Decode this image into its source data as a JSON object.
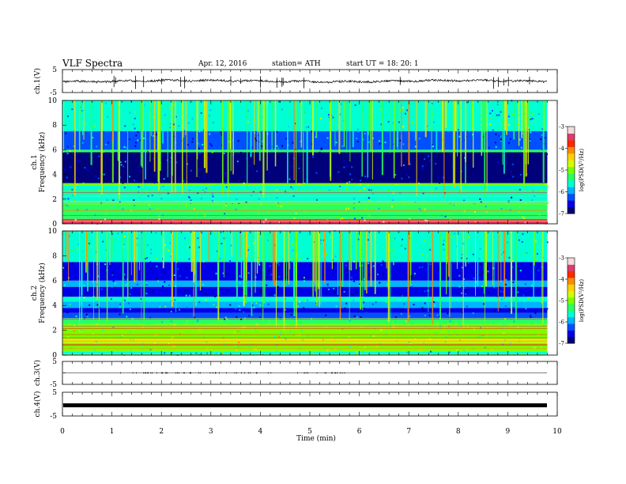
{
  "header": {
    "title": "VLF  Spectra",
    "date": "Apr. 12, 2016",
    "station": "station= ATH",
    "start": "start  UT  =    18: 20: 1"
  },
  "chart_data": [
    {
      "type": "line",
      "panel": "ch1-waveform",
      "ylabel": "ch.1(V)",
      "ylim": [
        -5,
        5
      ],
      "yticks": [
        "5",
        "-5"
      ],
      "xlim": [
        0,
        10
      ],
      "baseline": 0,
      "color": "#000000"
    },
    {
      "type": "heatmap",
      "panel": "ch1-spectrogram",
      "ylabel": "ch.1 Frequency (kHz)",
      "ylabel_lines": [
        "ch.1",
        "Frequency  (kHz)"
      ],
      "ylim": [
        0,
        10
      ],
      "yticks": [
        "0",
        "2",
        "4",
        "6",
        "8",
        "10"
      ],
      "xlim": [
        0,
        9.8
      ],
      "colorbar": {
        "label": "log(PSD(V²/Hz)",
        "range": [
          -7,
          -3
        ],
        "ticks": [
          "-3",
          "-4",
          "-5",
          "-6",
          "-7"
        ]
      },
      "bands": [
        {
          "from": 0.0,
          "to": 0.4,
          "level": -3.2
        },
        {
          "from": 0.4,
          "to": 0.9,
          "level": -5.5
        },
        {
          "from": 0.9,
          "to": 1.6,
          "level": -5.3
        },
        {
          "from": 1.6,
          "to": 2.2,
          "level": -5.8
        },
        {
          "from": 2.2,
          "to": 3.1,
          "level": -5.6
        },
        {
          "from": 3.1,
          "to": 3.3,
          "level": -5.0
        },
        {
          "from": 3.3,
          "to": 5.8,
          "level": -6.9
        },
        {
          "from": 5.8,
          "to": 6.0,
          "level": -5.4
        },
        {
          "from": 6.0,
          "to": 7.5,
          "level": -6.4
        },
        {
          "from": 7.5,
          "to": 10.0,
          "level": -5.6
        }
      ]
    },
    {
      "type": "heatmap",
      "panel": "ch2-spectrogram",
      "ylabel": "ch.2 Frequency (kHz)",
      "ylabel_lines": [
        "ch.2",
        "Frequency  (kHz)"
      ],
      "ylim": [
        0,
        10
      ],
      "yticks": [
        "0",
        "2",
        "4",
        "6",
        "8",
        "10"
      ],
      "xlim": [
        0,
        9.8
      ],
      "colorbar": {
        "label": "log(PSD(V²/Hz)",
        "range": [
          -7,
          -3
        ],
        "ticks": [
          "-3",
          "-4",
          "-5",
          "-6",
          "-7"
        ]
      },
      "bands": [
        {
          "from": 0.0,
          "to": 0.3,
          "level": -5.6
        },
        {
          "from": 0.3,
          "to": 1.0,
          "level": -5.1
        },
        {
          "from": 1.0,
          "to": 1.3,
          "level": -4.8
        },
        {
          "from": 1.3,
          "to": 2.5,
          "level": -5.0
        },
        {
          "from": 2.5,
          "to": 2.9,
          "level": -5.3
        },
        {
          "from": 2.9,
          "to": 3.4,
          "level": -6.4
        },
        {
          "from": 3.4,
          "to": 3.8,
          "level": -6.7
        },
        {
          "from": 3.8,
          "to": 4.3,
          "level": -6.0
        },
        {
          "from": 4.3,
          "to": 4.7,
          "level": -5.6
        },
        {
          "from": 4.7,
          "to": 5.5,
          "level": -6.7
        },
        {
          "from": 5.5,
          "to": 6.0,
          "level": -6.1
        },
        {
          "from": 6.0,
          "to": 7.5,
          "level": -6.6
        },
        {
          "from": 7.5,
          "to": 10.0,
          "level": -5.6
        }
      ]
    },
    {
      "type": "line",
      "panel": "ch3-waveform",
      "ylabel": "ch.3(V)",
      "ylim": [
        -5,
        5
      ],
      "yticks": [
        "5",
        "-5"
      ],
      "xlim": [
        0,
        10
      ],
      "baseline": 0,
      "color": "#000000"
    },
    {
      "type": "line",
      "panel": "ch4-waveform",
      "ylabel": "ch.4(V)",
      "ylim": [
        -5,
        5
      ],
      "yticks": [
        "5",
        "-5"
      ],
      "xlim": [
        0,
        10
      ],
      "baseline": -0.5,
      "color": "#000000"
    }
  ],
  "x_axis": {
    "label": "Time  (min)",
    "ticks": [
      "0",
      "1",
      "2",
      "3",
      "4",
      "5",
      "6",
      "7",
      "8",
      "9",
      "10"
    ],
    "range": [
      0,
      10
    ]
  },
  "colors": {
    "scale": [
      "#00007a",
      "#0000e6",
      "#0050ff",
      "#00b4ff",
      "#00ffd2",
      "#28ff64",
      "#78ff00",
      "#d2ff00",
      "#ffd200",
      "#ff8c00",
      "#ff2800",
      "#dc3c6e",
      "#f0dcdc"
    ]
  }
}
